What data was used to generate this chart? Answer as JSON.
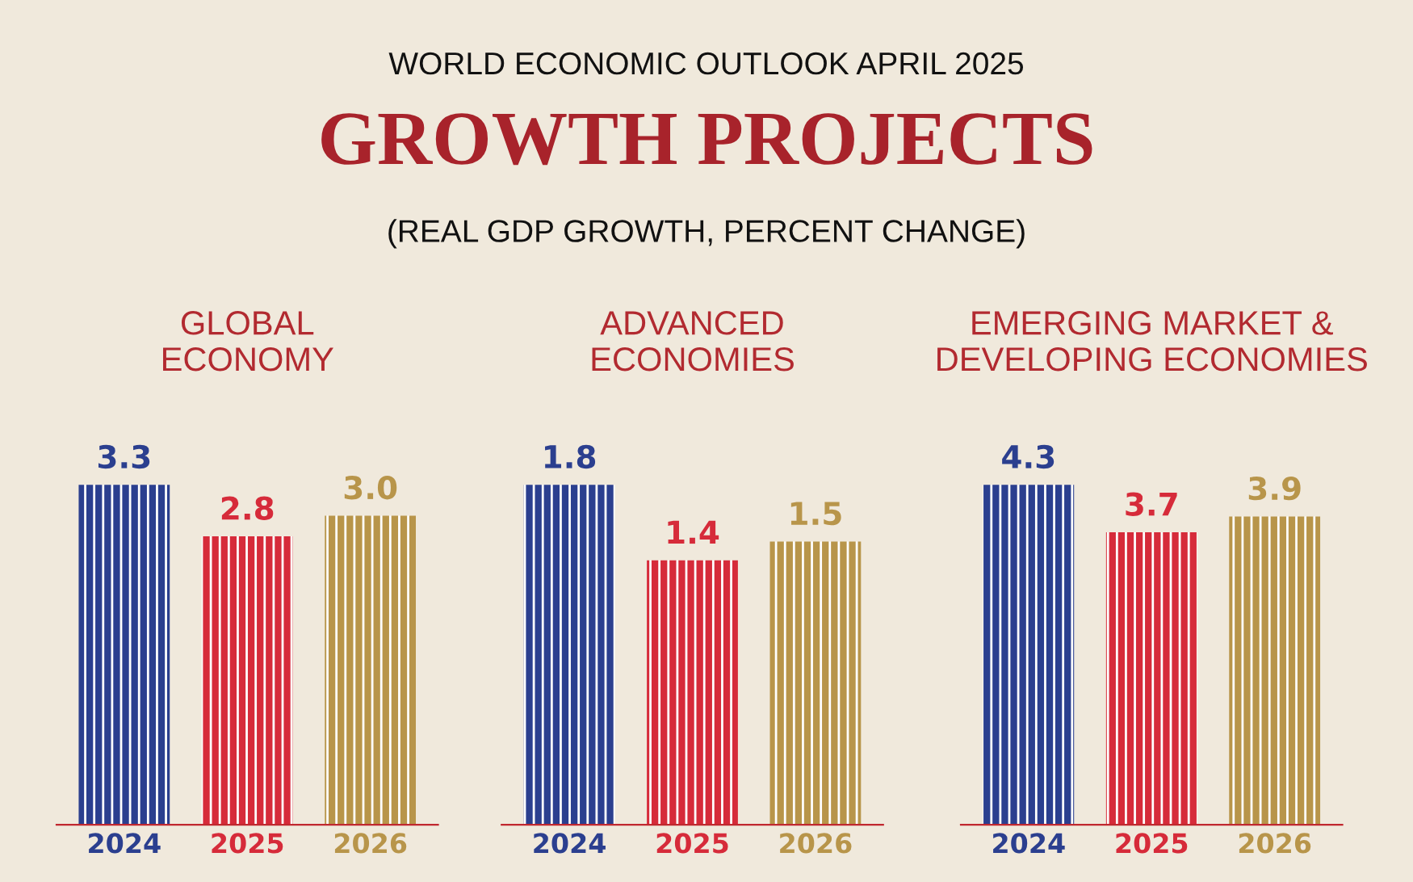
{
  "chart_data": [
    {
      "type": "other",
      "title": "GROWTH PROJECTS",
      "subtitle": "(REAL GDP GROWTH, PERCENT CHANGE)",
      "annotations": [
        "WORLD ECONOMIC OUTLOOK APRIL 2025"
      ]
    },
    {
      "type": "bar",
      "title": "GLOBAL\nECONOMY",
      "categories": [
        "2024",
        "2025",
        "2026"
      ],
      "values": [
        3.3,
        2.8,
        3.0
      ],
      "value_labels": [
        "3.3",
        "2.8",
        "3.0"
      ],
      "colors": [
        "#2b3f8f",
        "#d62b3a",
        "#b8954a"
      ],
      "grid": false,
      "legend": false
    },
    {
      "type": "bar",
      "title": "ADVANCED\nECONOMIES",
      "categories": [
        "2024",
        "2025",
        "2026"
      ],
      "values": [
        1.8,
        1.4,
        1.5
      ],
      "colors": [
        "#2b3f8f",
        "#d62b3a",
        "#b8954a"
      ],
      "data_labels": true,
      "grid": false,
      "legend": false
    },
    {
      "type": "bar",
      "title": "EMERGING MARKET &\nDEVELOPING ECONOMIES",
      "categories": [
        "2024",
        "2025",
        "2026"
      ],
      "values": [
        4.3,
        3.7,
        3.9
      ],
      "colors": [
        "#2b3f8f",
        "#d62b3a",
        "#b8954a"
      ],
      "data_labels": true,
      "grid": false,
      "legend": false
    }
  ]
}
